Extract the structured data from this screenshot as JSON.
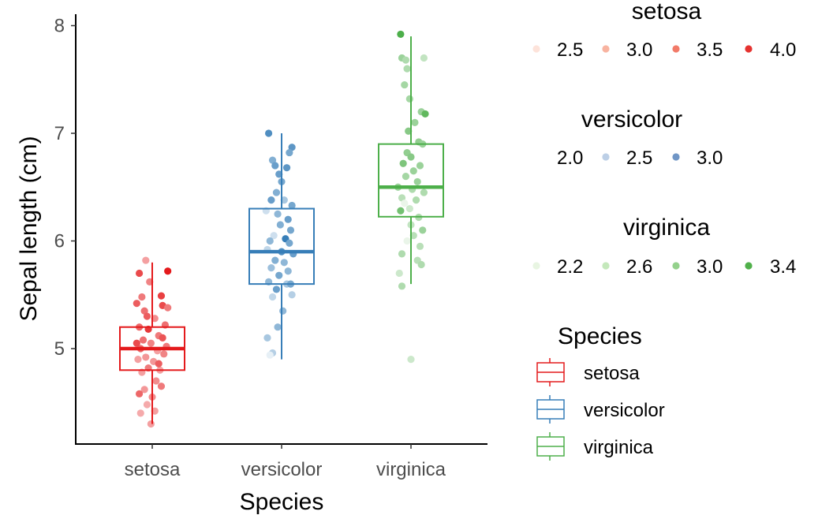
{
  "chart_data": {
    "type": "box",
    "xlabel": "Species",
    "ylabel": "Sepal length (cm)",
    "categories": [
      "setosa",
      "versicolor",
      "virginica"
    ],
    "ylim": [
      4.2,
      8.1
    ],
    "yticks": [
      5,
      6,
      7,
      8
    ],
    "grid": false,
    "series": [
      {
        "name": "setosa",
        "color": "#e41a1c",
        "box": {
          "min": 4.3,
          "q1": 4.8,
          "median": 5.0,
          "q3": 5.2,
          "max": 5.8
        },
        "points": [
          {
            "x": 0.95,
            "y": 5.82,
            "w": 3.0
          },
          {
            "x": 1.12,
            "y": 5.72,
            "w": 4.4
          },
          {
            "x": 0.9,
            "y": 5.7,
            "w": 3.9
          },
          {
            "x": 0.98,
            "y": 5.62,
            "w": 3.3
          },
          {
            "x": 0.92,
            "y": 5.48,
            "w": 3.4
          },
          {
            "x": 1.07,
            "y": 5.49,
            "w": 4.0
          },
          {
            "x": 0.88,
            "y": 5.42,
            "w": 3.7
          },
          {
            "x": 1.08,
            "y": 5.4,
            "w": 3.9
          },
          {
            "x": 0.94,
            "y": 5.35,
            "w": 3.5
          },
          {
            "x": 1.12,
            "y": 5.38,
            "w": 3.4
          },
          {
            "x": 0.96,
            "y": 5.3,
            "w": 3.7
          },
          {
            "x": 1.02,
            "y": 5.28,
            "w": 3.2
          },
          {
            "x": 0.9,
            "y": 5.2,
            "w": 3.6
          },
          {
            "x": 1.1,
            "y": 5.22,
            "w": 3.5
          },
          {
            "x": 0.97,
            "y": 5.18,
            "w": 4.1
          },
          {
            "x": 1.05,
            "y": 5.12,
            "w": 3.4
          },
          {
            "x": 0.93,
            "y": 5.08,
            "w": 3.5
          },
          {
            "x": 1.08,
            "y": 5.1,
            "w": 3.8
          },
          {
            "x": 0.99,
            "y": 5.05,
            "w": 3.3
          },
          {
            "x": 1.11,
            "y": 5.02,
            "w": 3.4
          },
          {
            "x": 0.91,
            "y": 5.0,
            "w": 3.6
          },
          {
            "x": 1.04,
            "y": 4.98,
            "w": 3.0
          },
          {
            "x": 0.95,
            "y": 4.92,
            "w": 3.1
          },
          {
            "x": 1.09,
            "y": 4.95,
            "w": 3.3
          },
          {
            "x": 0.89,
            "y": 4.9,
            "w": 3.0
          },
          {
            "x": 1.01,
            "y": 4.88,
            "w": 3.1
          },
          {
            "x": 0.97,
            "y": 4.82,
            "w": 3.4
          },
          {
            "x": 1.06,
            "y": 4.8,
            "w": 3.0
          },
          {
            "x": 0.92,
            "y": 4.78,
            "w": 3.0
          },
          {
            "x": 1.03,
            "y": 4.7,
            "w": 3.2
          },
          {
            "x": 0.94,
            "y": 4.62,
            "w": 3.1
          },
          {
            "x": 1.07,
            "y": 4.65,
            "w": 3.4
          },
          {
            "x": 0.9,
            "y": 4.58,
            "w": 3.6
          },
          {
            "x": 1.0,
            "y": 4.55,
            "w": 3.2
          },
          {
            "x": 0.96,
            "y": 4.48,
            "w": 2.9
          },
          {
            "x": 1.02,
            "y": 4.42,
            "w": 3.0
          },
          {
            "x": 0.91,
            "y": 4.4,
            "w": 2.9
          },
          {
            "x": 0.99,
            "y": 4.3,
            "w": 3.0
          },
          {
            "x": 1.05,
            "y": 4.86,
            "w": 3.7
          },
          {
            "x": 0.88,
            "y": 5.05,
            "w": 3.9
          }
        ]
      },
      {
        "name": "versicolor",
        "color": "#377eb8",
        "box": {
          "min": 4.9,
          "q1": 5.6,
          "median": 5.9,
          "q3": 6.3,
          "max": 7.0
        },
        "points": [
          {
            "x": 1.9,
            "y": 7.0,
            "w": 3.2
          },
          {
            "x": 2.08,
            "y": 6.87,
            "w": 3.1
          },
          {
            "x": 2.06,
            "y": 6.82,
            "w": 2.9
          },
          {
            "x": 1.93,
            "y": 6.75,
            "w": 2.8
          },
          {
            "x": 1.95,
            "y": 6.7,
            "w": 3.0
          },
          {
            "x": 2.04,
            "y": 6.68,
            "w": 3.1
          },
          {
            "x": 1.98,
            "y": 6.62,
            "w": 3.0
          },
          {
            "x": 2.0,
            "y": 6.55,
            "w": 2.9
          },
          {
            "x": 1.96,
            "y": 6.45,
            "w": 2.8
          },
          {
            "x": 1.92,
            "y": 6.38,
            "w": 3.0
          },
          {
            "x": 2.02,
            "y": 6.38,
            "w": 2.5
          },
          {
            "x": 2.08,
            "y": 6.33,
            "w": 2.9
          },
          {
            "x": 1.88,
            "y": 6.28,
            "w": 2.2
          },
          {
            "x": 1.97,
            "y": 6.25,
            "w": 2.7
          },
          {
            "x": 2.05,
            "y": 6.2,
            "w": 3.0
          },
          {
            "x": 1.99,
            "y": 6.15,
            "w": 2.8
          },
          {
            "x": 2.07,
            "y": 6.1,
            "w": 2.9
          },
          {
            "x": 1.94,
            "y": 6.05,
            "w": 2.2
          },
          {
            "x": 2.03,
            "y": 6.02,
            "w": 3.4
          },
          {
            "x": 1.91,
            "y": 6.0,
            "w": 2.7
          },
          {
            "x": 2.06,
            "y": 5.98,
            "w": 2.9
          },
          {
            "x": 1.89,
            "y": 5.92,
            "w": 2.3
          },
          {
            "x": 2.0,
            "y": 5.9,
            "w": 3.2
          },
          {
            "x": 2.09,
            "y": 5.88,
            "w": 3.0
          },
          {
            "x": 1.95,
            "y": 5.82,
            "w": 2.8
          },
          {
            "x": 2.02,
            "y": 5.8,
            "w": 2.7
          },
          {
            "x": 1.92,
            "y": 5.75,
            "w": 2.6
          },
          {
            "x": 2.05,
            "y": 5.72,
            "w": 2.7
          },
          {
            "x": 1.98,
            "y": 5.68,
            "w": 2.9
          },
          {
            "x": 1.9,
            "y": 5.62,
            "w": 2.7
          },
          {
            "x": 2.04,
            "y": 5.6,
            "w": 2.5
          },
          {
            "x": 1.96,
            "y": 5.55,
            "w": 3.0
          },
          {
            "x": 2.08,
            "y": 5.5,
            "w": 2.4
          },
          {
            "x": 1.93,
            "y": 5.48,
            "w": 2.3
          },
          {
            "x": 2.01,
            "y": 5.35,
            "w": 2.7
          },
          {
            "x": 1.97,
            "y": 5.2,
            "w": 2.7
          },
          {
            "x": 1.89,
            "y": 5.1,
            "w": 2.5
          },
          {
            "x": 1.93,
            "y": 4.96,
            "w": 2.4
          },
          {
            "x": 1.91,
            "y": 4.94,
            "w": 2.0
          },
          {
            "x": 2.07,
            "y": 5.6,
            "w": 2.9
          }
        ]
      },
      {
        "name": "virginica",
        "color": "#4daf4a",
        "box": {
          "min": 5.6,
          "q1": 6.225,
          "median": 6.5,
          "q3": 6.9,
          "max": 7.9
        },
        "points": [
          {
            "x": 2.92,
            "y": 7.92,
            "w": 3.8
          },
          {
            "x": 2.93,
            "y": 7.7,
            "w": 3.0
          },
          {
            "x": 2.96,
            "y": 7.68,
            "w": 2.8
          },
          {
            "x": 3.1,
            "y": 7.7,
            "w": 2.6
          },
          {
            "x": 2.97,
            "y": 7.6,
            "w": 2.8
          },
          {
            "x": 2.95,
            "y": 7.45,
            "w": 2.9
          },
          {
            "x": 2.99,
            "y": 7.32,
            "w": 2.9
          },
          {
            "x": 3.08,
            "y": 7.2,
            "w": 3.0
          },
          {
            "x": 3.11,
            "y": 7.18,
            "w": 3.6
          },
          {
            "x": 3.03,
            "y": 7.1,
            "w": 3.0
          },
          {
            "x": 2.98,
            "y": 7.02,
            "w": 3.2
          },
          {
            "x": 3.06,
            "y": 6.92,
            "w": 3.1
          },
          {
            "x": 3.09,
            "y": 6.9,
            "w": 3.0
          },
          {
            "x": 2.97,
            "y": 6.82,
            "w": 3.1
          },
          {
            "x": 3.0,
            "y": 6.78,
            "w": 3.2
          },
          {
            "x": 2.94,
            "y": 6.72,
            "w": 3.3
          },
          {
            "x": 3.07,
            "y": 6.7,
            "w": 3.0
          },
          {
            "x": 3.02,
            "y": 6.65,
            "w": 3.0
          },
          {
            "x": 2.96,
            "y": 6.6,
            "w": 2.9
          },
          {
            "x": 3.05,
            "y": 6.55,
            "w": 3.0
          },
          {
            "x": 2.9,
            "y": 6.5,
            "w": 3.0
          },
          {
            "x": 3.01,
            "y": 6.48,
            "w": 2.8
          },
          {
            "x": 3.1,
            "y": 6.45,
            "w": 2.8
          },
          {
            "x": 2.93,
            "y": 6.4,
            "w": 2.7
          },
          {
            "x": 3.04,
            "y": 6.38,
            "w": 2.8
          },
          {
            "x": 2.95,
            "y": 6.35,
            "w": 2.2
          },
          {
            "x": 2.99,
            "y": 6.3,
            "w": 2.5
          },
          {
            "x": 2.92,
            "y": 6.28,
            "w": 3.4
          },
          {
            "x": 3.06,
            "y": 6.22,
            "w": 2.8
          },
          {
            "x": 3.0,
            "y": 6.15,
            "w": 2.6
          },
          {
            "x": 3.09,
            "y": 6.1,
            "w": 3.0
          },
          {
            "x": 3.02,
            "y": 6.05,
            "w": 2.7
          },
          {
            "x": 2.97,
            "y": 6.0,
            "w": 2.2
          },
          {
            "x": 3.07,
            "y": 5.95,
            "w": 2.7
          },
          {
            "x": 2.93,
            "y": 5.88,
            "w": 2.8
          },
          {
            "x": 3.05,
            "y": 5.82,
            "w": 2.7
          },
          {
            "x": 3.08,
            "y": 5.78,
            "w": 2.8
          },
          {
            "x": 2.91,
            "y": 5.7,
            "w": 2.5
          },
          {
            "x": 2.93,
            "y": 5.58,
            "w": 2.8
          },
          {
            "x": 3.0,
            "y": 4.9,
            "w": 2.5
          }
        ]
      }
    ],
    "legends": [
      {
        "title": "setosa",
        "entries": [
          {
            "label": "2.5",
            "color": "#fde3da"
          },
          {
            "label": "3.0",
            "color": "#f8b3a0"
          },
          {
            "label": "3.5",
            "color": "#f27a68"
          },
          {
            "label": "4.0",
            "color": "#e5322f"
          }
        ]
      },
      {
        "title": "versicolor",
        "entries": [
          {
            "label": "2.0",
            "color": "#ffffff"
          },
          {
            "label": "2.5",
            "color": "#bccfe6"
          },
          {
            "label": "3.0",
            "color": "#7096c6"
          }
        ]
      },
      {
        "title": "virginica",
        "entries": [
          {
            "label": "2.2",
            "color": "#e8f5e2"
          },
          {
            "label": "2.6",
            "color": "#c4e8bb"
          },
          {
            "label": "3.0",
            "color": "#94d18c"
          },
          {
            "label": "3.4",
            "color": "#50b04a"
          }
        ]
      },
      {
        "title": "Species",
        "entries": [
          {
            "label": "setosa",
            "color": "#e41a1c"
          },
          {
            "label": "versicolor",
            "color": "#377eb8"
          },
          {
            "label": "virginica",
            "color": "#4daf4a"
          }
        ]
      }
    ]
  }
}
